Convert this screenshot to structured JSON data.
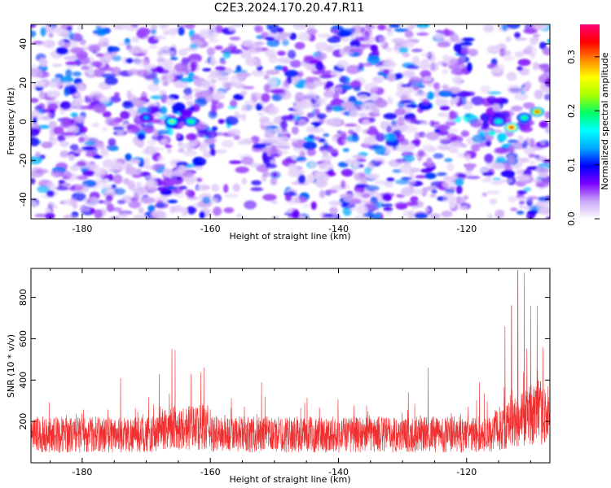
{
  "title": "C2E3.2024.170.20.47.R11",
  "chart_data": [
    {
      "type": "heatmap",
      "xlabel": "Height of straight line (km)",
      "ylabel": "Frequency (Hz)",
      "xlim": [
        -188,
        -107
      ],
      "ylim": [
        -50,
        50
      ],
      "xticks": [
        "-180",
        "-160",
        "-140",
        "-120"
      ],
      "xtick_values": [
        -180,
        -160,
        -140,
        -120
      ],
      "yticks": [
        "40",
        "20",
        "0",
        "-20",
        "-40"
      ],
      "ytick_values": [
        40,
        20,
        0,
        -20,
        -40
      ],
      "colorbar": {
        "label": "Normalized spectral amplitude",
        "range": [
          0.0,
          0.36
        ],
        "ticks": [
          "0.0",
          "0.1",
          "0.2",
          "0.3"
        ],
        "tick_values": [
          0.0,
          0.1,
          0.2,
          0.3
        ],
        "colormap": [
          "#ffffff",
          "#c9a6f5",
          "#7a00ff",
          "#0000ff",
          "#00aaff",
          "#00ffff",
          "#00ff66",
          "#aaff00",
          "#ffff00",
          "#ff8800",
          "#ff0000",
          "#ff0077"
        ]
      },
      "hotspots": [
        {
          "x": -166,
          "y": 0,
          "value": 0.22
        },
        {
          "x": -163,
          "y": 0,
          "value": 0.2
        },
        {
          "x": -170,
          "y": 2,
          "value": 0.14
        },
        {
          "x": -115,
          "y": 0,
          "value": 0.18
        },
        {
          "x": -113,
          "y": -3,
          "value": 0.34
        },
        {
          "x": -109,
          "y": 5,
          "value": 0.3
        },
        {
          "x": -111,
          "y": 2,
          "value": 0.2
        }
      ]
    },
    {
      "type": "line",
      "xlabel": "Height of straight line (km)",
      "ylabel": "SNR (10 * v/v)",
      "xlim": [
        -188,
        -107
      ],
      "ylim": [
        0,
        940
      ],
      "xticks": [
        "-180",
        "-160",
        "-140",
        "-120"
      ],
      "xtick_values": [
        -180,
        -160,
        -140,
        -120
      ],
      "yticks": [
        "800",
        "600",
        "400",
        "200"
      ],
      "ytick_values": [
        800,
        600,
        400,
        200
      ],
      "series": [
        {
          "color": "#f03030",
          "baseline_mean": 140,
          "spikes": [
            {
              "x": -174,
              "y": 410
            },
            {
              "x": -168,
              "y": 430
            },
            {
              "x": -166,
              "y": 550
            },
            {
              "x": -165.5,
              "y": 545
            },
            {
              "x": -161,
              "y": 460
            },
            {
              "x": -152,
              "y": 390
            },
            {
              "x": -126,
              "y": 460
            },
            {
              "x": -118,
              "y": 390
            },
            {
              "x": -114,
              "y": 660
            },
            {
              "x": -113,
              "y": 760
            },
            {
              "x": -112,
              "y": 930
            },
            {
              "x": -111,
              "y": 920
            },
            {
              "x": -110,
              "y": 760
            },
            {
              "x": -109,
              "y": 760
            }
          ]
        }
      ]
    }
  ]
}
